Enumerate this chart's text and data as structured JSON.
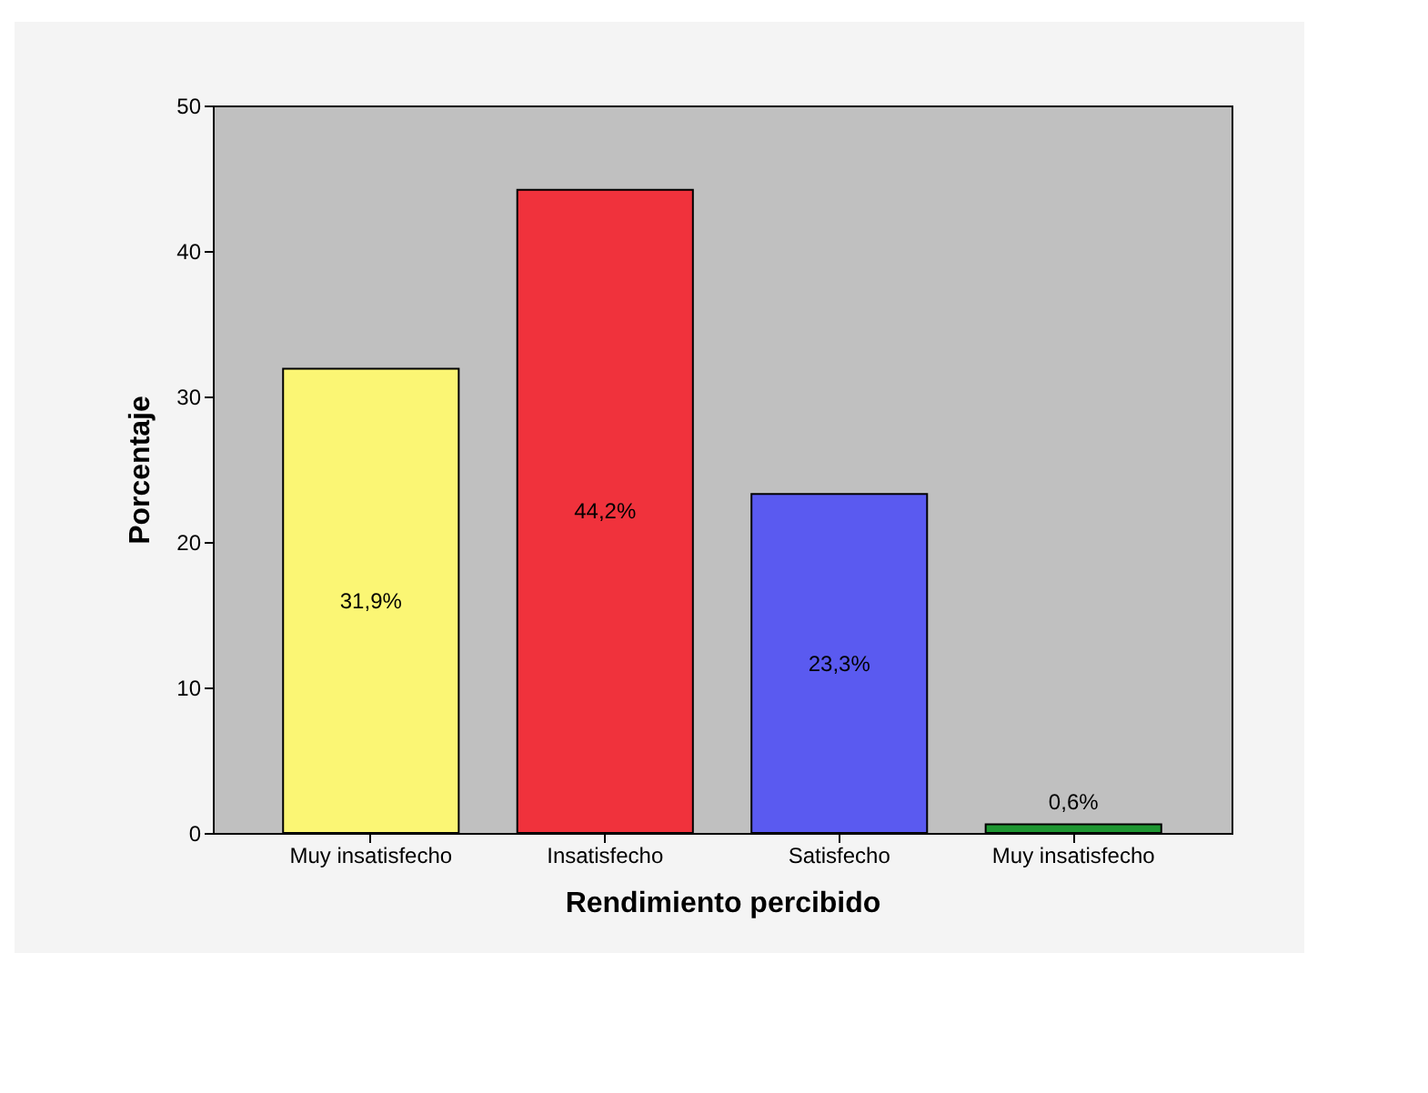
{
  "chart_data": {
    "type": "bar",
    "xlabel": "Rendimiento percibido",
    "ylabel": "Porcentaje",
    "categories": [
      "Muy insatisfecho",
      "Insatisfecho",
      "Satisfecho",
      "Muy insatisfecho"
    ],
    "values": [
      31.9,
      44.2,
      23.3,
      0.6
    ],
    "colors": [
      "#fbf674",
      "#f0323c",
      "#5a5af0",
      "#1e9632"
    ],
    "value_labels": [
      "31,9%",
      "44,2%",
      "23,3%",
      "0,6%"
    ],
    "ylim": [
      0,
      50
    ],
    "yticks": [
      0,
      10,
      20,
      30,
      40,
      50
    ],
    "grid": false
  }
}
